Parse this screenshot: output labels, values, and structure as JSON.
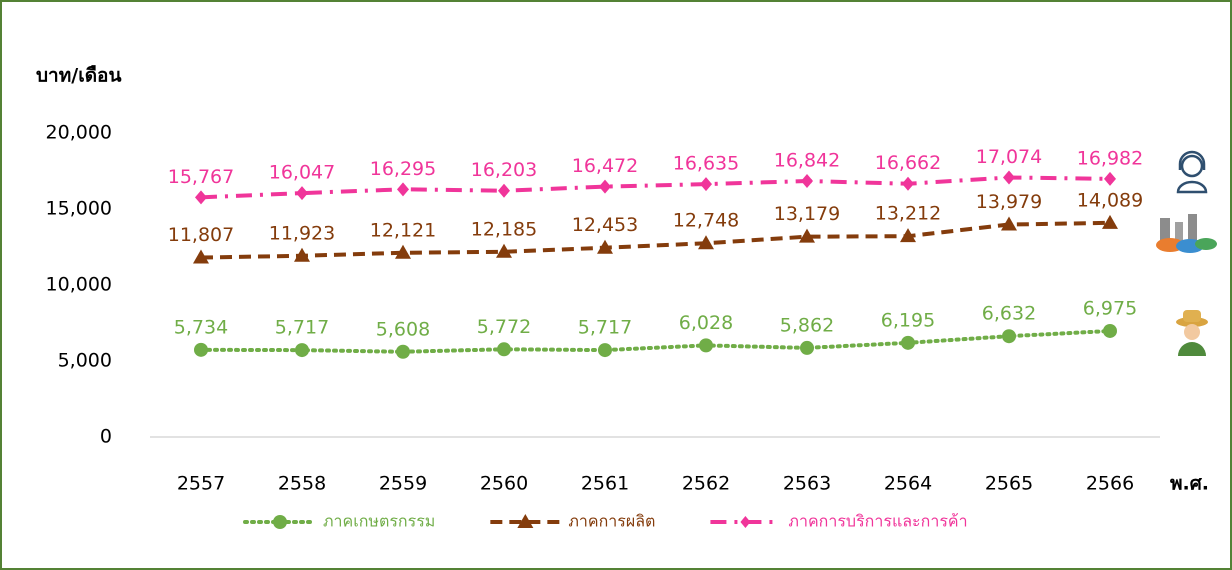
{
  "chart_data": {
    "type": "line",
    "y_label": "บาท/เดือน",
    "x_label": "พ.ศ.",
    "categories": [
      "2557",
      "2558",
      "2559",
      "2560",
      "2561",
      "2562",
      "2563",
      "2564",
      "2565",
      "2566"
    ],
    "series": [
      {
        "name": "ภาคเกษตรกรรม",
        "color": "#70ad47",
        "dash": "dotted",
        "marker": "circle",
        "values": [
          5734,
          5717,
          5608,
          5772,
          5717,
          6028,
          5862,
          6195,
          6632,
          6975
        ],
        "value_labels": [
          "5,734",
          "5,717",
          "5,608",
          "5,772",
          "5,717",
          "6,028",
          "5,862",
          "6,195",
          "6,632",
          "6,975"
        ]
      },
      {
        "name": "ภาคการผลิต",
        "color": "#843c0c",
        "dash": "dashed",
        "marker": "triangle",
        "values": [
          11807,
          11923,
          12121,
          12185,
          12453,
          12748,
          13179,
          13212,
          13979,
          14089
        ],
        "value_labels": [
          "11,807",
          "11,923",
          "12,121",
          "12,185",
          "12,453",
          "12,748",
          "13,179",
          "13,212",
          "13,979",
          "14,089"
        ]
      },
      {
        "name": "ภาคการบริการและการค้า",
        "color": "#f0359a",
        "dash": "dashdot",
        "marker": "diamond",
        "values": [
          15767,
          16047,
          16295,
          16203,
          16472,
          16635,
          16842,
          16662,
          17074,
          16982
        ],
        "value_labels": [
          "15,767",
          "16,047",
          "16,295",
          "16,203",
          "16,472",
          "16,635",
          "16,842",
          "16,662",
          "17,074",
          "16,982"
        ]
      }
    ],
    "ylim": [
      0,
      20000
    ],
    "yticks": [
      0,
      {
        "value": 5000,
        "label": "5,000"
      },
      {
        "value": 10000,
        "label": "10,000"
      },
      {
        "value": 15000,
        "label": "15,000"
      },
      {
        "value": 20000,
        "label": "20,000"
      }
    ],
    "grid": false,
    "legend": "bottom"
  }
}
